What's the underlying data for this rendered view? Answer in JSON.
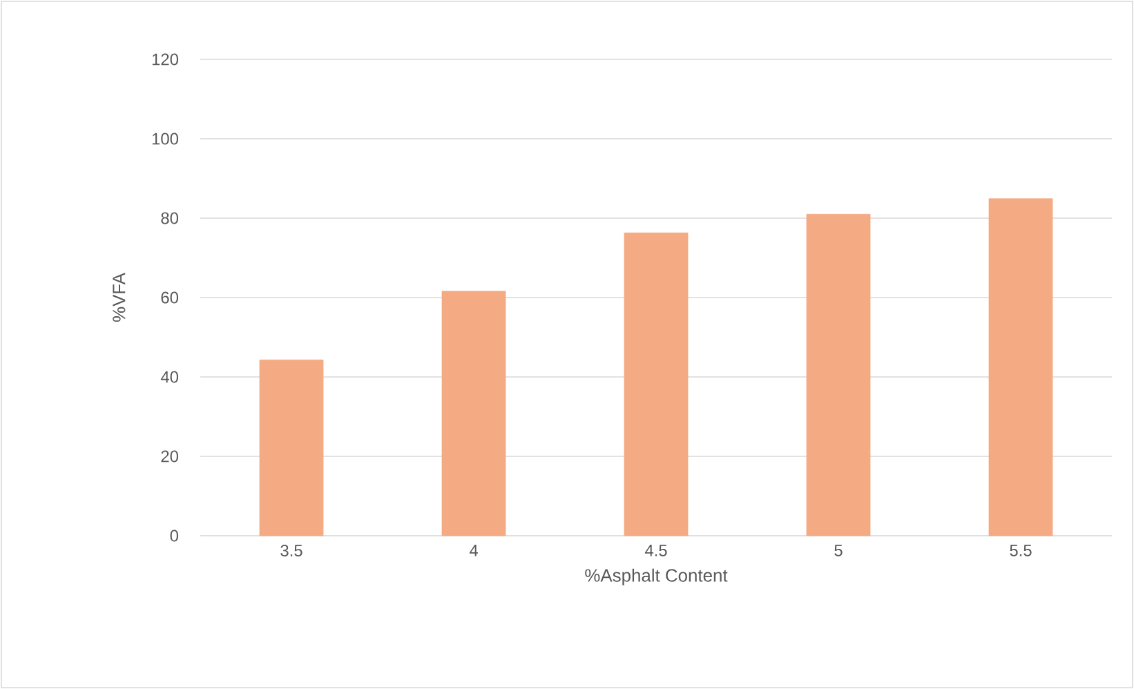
{
  "chart_data": {
    "type": "bar",
    "xlabel": "%Asphalt Content",
    "ylabel": "%VFA",
    "categories": [
      "3.5",
      "4",
      "4.5",
      "5",
      "5.5"
    ],
    "values": [
      44.3,
      61.6,
      76.3,
      81,
      84.9
    ],
    "color": "#f4ab84",
    "ylim": [
      0,
      120
    ],
    "yticks": [
      0,
      20,
      40,
      60,
      80,
      100,
      120
    ],
    "grid": "y"
  }
}
